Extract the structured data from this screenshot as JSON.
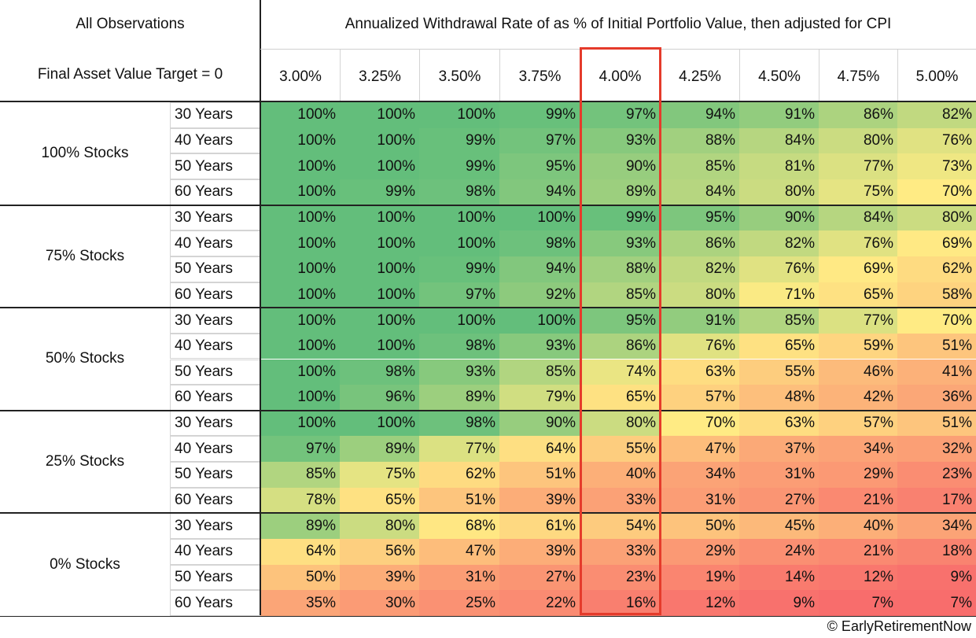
{
  "header": {
    "corner_top": "All Observations",
    "corner_bottom": "Final Asset Value Target = 0",
    "title": "Annualized Withdrawal Rate of as % of Initial Portfolio Value, then adjusted for CPI"
  },
  "credit": "© EarlyRetirementNow",
  "highlight_column": "4.00%",
  "colors": {
    "high": "#63be7b",
    "mid": "#ffeb84",
    "low": "#f8696b",
    "highlight_border": "#e53b2b"
  },
  "chart_data": {
    "type": "table",
    "title": "Annualized Withdrawal Rate of as % of Initial Portfolio Value, then adjusted for CPI",
    "columns": [
      "3.00%",
      "3.25%",
      "3.50%",
      "3.75%",
      "4.00%",
      "4.25%",
      "4.50%",
      "4.75%",
      "5.00%"
    ],
    "groups": [
      {
        "label": "100% Stocks",
        "rows": [
          {
            "horizon": "30 Years",
            "values": [
              "100%",
              "100%",
              "100%",
              "99%",
              "97%",
              "94%",
              "91%",
              "86%",
              "82%"
            ]
          },
          {
            "horizon": "40 Years",
            "values": [
              "100%",
              "100%",
              "99%",
              "97%",
              "93%",
              "88%",
              "84%",
              "80%",
              "76%"
            ]
          },
          {
            "horizon": "50 Years",
            "values": [
              "100%",
              "100%",
              "99%",
              "95%",
              "90%",
              "85%",
              "81%",
              "77%",
              "73%"
            ]
          },
          {
            "horizon": "60 Years",
            "values": [
              "100%",
              "99%",
              "98%",
              "94%",
              "89%",
              "84%",
              "80%",
              "75%",
              "70%"
            ]
          }
        ]
      },
      {
        "label": "75% Stocks",
        "rows": [
          {
            "horizon": "30 Years",
            "values": [
              "100%",
              "100%",
              "100%",
              "100%",
              "99%",
              "95%",
              "90%",
              "84%",
              "80%"
            ]
          },
          {
            "horizon": "40 Years",
            "values": [
              "100%",
              "100%",
              "100%",
              "98%",
              "93%",
              "86%",
              "82%",
              "76%",
              "69%"
            ]
          },
          {
            "horizon": "50 Years",
            "values": [
              "100%",
              "100%",
              "99%",
              "94%",
              "88%",
              "82%",
              "76%",
              "69%",
              "62%"
            ]
          },
          {
            "horizon": "60 Years",
            "values": [
              "100%",
              "100%",
              "97%",
              "92%",
              "85%",
              "80%",
              "71%",
              "65%",
              "58%"
            ]
          }
        ]
      },
      {
        "label": "50% Stocks",
        "rows": [
          {
            "horizon": "30 Years",
            "values": [
              "100%",
              "100%",
              "100%",
              "100%",
              "95%",
              "91%",
              "85%",
              "77%",
              "70%"
            ]
          },
          {
            "horizon": "40 Years",
            "values": [
              "100%",
              "100%",
              "98%",
              "93%",
              "86%",
              "76%",
              "65%",
              "59%",
              "51%"
            ]
          },
          {
            "horizon": "50 Years",
            "values": [
              "100%",
              "98%",
              "93%",
              "85%",
              "74%",
              "63%",
              "55%",
              "46%",
              "41%"
            ]
          },
          {
            "horizon": "60 Years",
            "values": [
              "100%",
              "96%",
              "89%",
              "79%",
              "65%",
              "57%",
              "48%",
              "42%",
              "36%"
            ]
          }
        ]
      },
      {
        "label": "25% Stocks",
        "rows": [
          {
            "horizon": "30 Years",
            "values": [
              "100%",
              "100%",
              "98%",
              "90%",
              "80%",
              "70%",
              "63%",
              "57%",
              "51%"
            ]
          },
          {
            "horizon": "40 Years",
            "values": [
              "97%",
              "89%",
              "77%",
              "64%",
              "55%",
              "47%",
              "37%",
              "34%",
              "32%"
            ]
          },
          {
            "horizon": "50 Years",
            "values": [
              "85%",
              "75%",
              "62%",
              "51%",
              "40%",
              "34%",
              "31%",
              "29%",
              "23%"
            ]
          },
          {
            "horizon": "60 Years",
            "values": [
              "78%",
              "65%",
              "51%",
              "39%",
              "33%",
              "31%",
              "27%",
              "21%",
              "17%"
            ]
          }
        ]
      },
      {
        "label": "0% Stocks",
        "rows": [
          {
            "horizon": "30 Years",
            "values": [
              "89%",
              "80%",
              "68%",
              "61%",
              "54%",
              "50%",
              "45%",
              "40%",
              "34%"
            ]
          },
          {
            "horizon": "40 Years",
            "values": [
              "64%",
              "56%",
              "47%",
              "39%",
              "33%",
              "29%",
              "24%",
              "21%",
              "18%"
            ]
          },
          {
            "horizon": "50 Years",
            "values": [
              "50%",
              "39%",
              "31%",
              "27%",
              "23%",
              "19%",
              "14%",
              "12%",
              "9%"
            ]
          },
          {
            "horizon": "60 Years",
            "values": [
              "35%",
              "30%",
              "25%",
              "22%",
              "16%",
              "12%",
              "9%",
              "7%",
              "7%"
            ]
          }
        ]
      }
    ]
  }
}
